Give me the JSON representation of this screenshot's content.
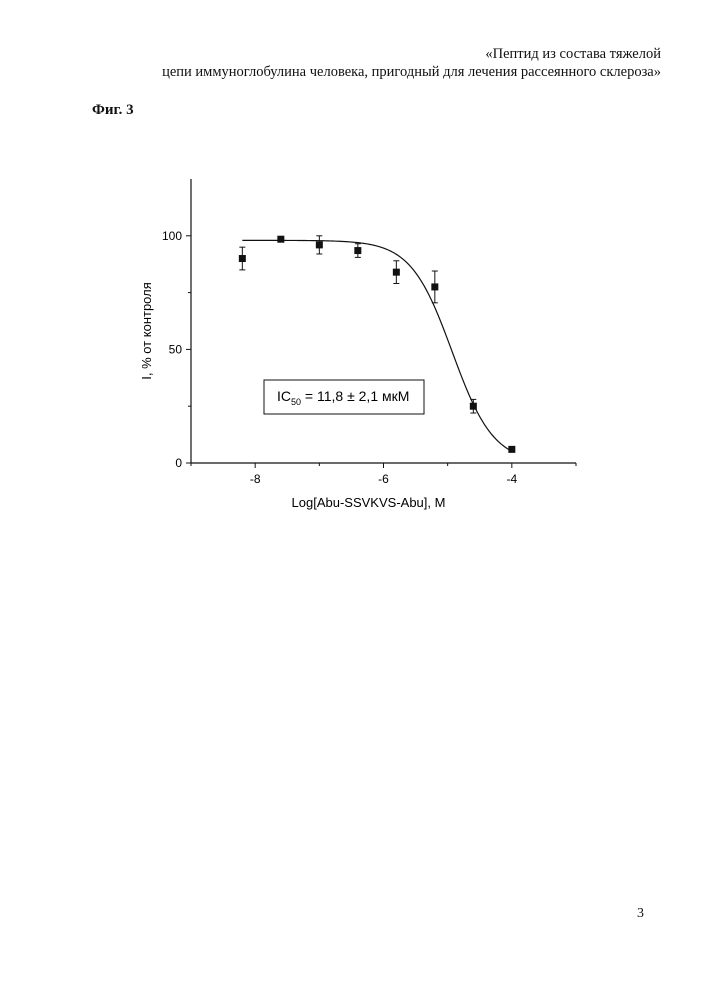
{
  "header": {
    "line1": "«Пептид из состава тяжелой",
    "line2": "цепи иммуноглобулина человека, пригодный для лечения рассеянного склероза»"
  },
  "figure_label": "Фиг. 3",
  "page_number": "3",
  "chart_data": {
    "type": "scatter",
    "xlabel": "Log[Abu-SSVKVS-Abu], M",
    "ylabel": "I, % от контроля",
    "xlim": [
      -9,
      -3
    ],
    "ylim": [
      0,
      125
    ],
    "x_ticks": [
      -8,
      -6,
      -4
    ],
    "y_ticks": [
      0,
      50,
      100
    ],
    "x_tick_labels": [
      "-8",
      "-6",
      "-4"
    ],
    "y_tick_labels": [
      "0",
      "50",
      "100"
    ],
    "points": [
      {
        "x": -8.2,
        "y": 90,
        "err": 5
      },
      {
        "x": -7.6,
        "y": 98.5,
        "err": 1
      },
      {
        "x": -7.0,
        "y": 96,
        "err": 4
      },
      {
        "x": -6.4,
        "y": 93.5,
        "err": 3
      },
      {
        "x": -5.8,
        "y": 84,
        "err": 5
      },
      {
        "x": -5.2,
        "y": 77.5,
        "err": 7
      },
      {
        "x": -4.6,
        "y": 25,
        "err": 3
      },
      {
        "x": -4.0,
        "y": 6,
        "err": 0.5
      }
    ],
    "fit": {
      "top": 98,
      "bottom": 0,
      "log_ic50": -4.93,
      "hill": 1.35,
      "x_from": -8.2,
      "x_to": -4.0
    },
    "annotation": {
      "prefix": "IC",
      "subscript": "50",
      "suffix": " = 11,8 ± 2,1 мкМ"
    },
    "grid": false,
    "legend": "none"
  }
}
